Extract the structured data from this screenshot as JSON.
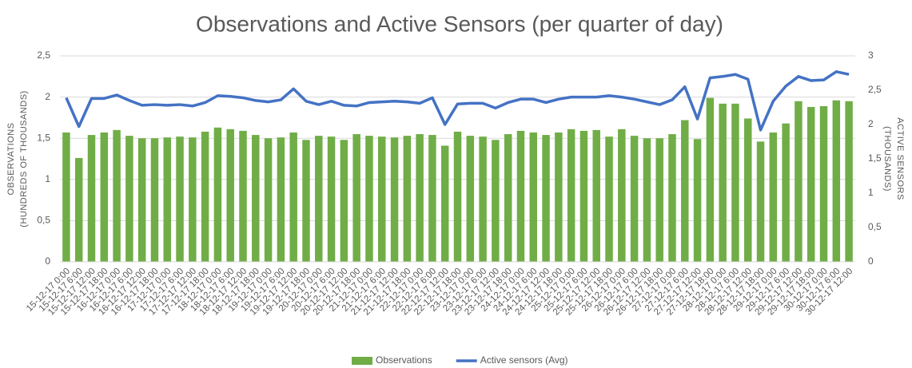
{
  "chart_data": {
    "type": "bar_line",
    "title": "Observations and Active Sensors (per quarter of day)",
    "y_label": [
      "OBSERVATIONS",
      "(HUNDREDS OF THOUSANDS)"
    ],
    "y2_label": [
      "ACTIVE SENSORS",
      "(THOUSANDS)"
    ],
    "categories": [
      "15-12-17 0:00",
      "15-12-17 6:00",
      "15-12-17 12:00",
      "15-12-17 18:00",
      "16-12-17 0:00",
      "16-12-17 6:00",
      "16-12-17 12:00",
      "16-12-17 18:00",
      "17-12-17 0:00",
      "17-12-17 6:00",
      "17-12-17 12:00",
      "17-12-17 18:00",
      "18-12-17 0:00",
      "18-12-17 6:00",
      "18-12-17 12:00",
      "18-12-17 18:00",
      "19-12-17 0:00",
      "19-12-17 6:00",
      "19-12-17 12:00",
      "19-12-17 18:00",
      "20-12-17 0:00",
      "20-12-17 6:00",
      "20-12-17 12:00",
      "20-12-17 18:00",
      "21-12-17 0:00",
      "21-12-17 6:00",
      "21-12-17 12:00",
      "21-12-17 18:00",
      "22-12-17 0:00",
      "22-12-17 6:00",
      "22-12-17 12:00",
      "22-12-17 18:00",
      "23-12-17 0:00",
      "23-12-17 6:00",
      "23-12-17 12:00",
      "23-12-17 18:00",
      "24-12-17 0:00",
      "24-12-17 6:00",
      "24-12-17 12:00",
      "24-12-17 18:00",
      "25-12-17 0:00",
      "25-12-17 6:00",
      "25-12-17 12:00",
      "25-12-17 18:00",
      "26-12-17 0:00",
      "26-12-17 6:00",
      "26-12-17 12:00",
      "26-12-17 18:00",
      "27-12-17 0:00",
      "27-12-17 6:00",
      "27-12-17 12:00",
      "27-12-17 18:00",
      "28-12-17 0:00",
      "28-12-17 6:00",
      "28-12-17 12:00",
      "28-12-17 18:00",
      "29-12-17 0:00",
      "29-12-17 6:00",
      "29-12-17 12:00",
      "29-12-17 18:00",
      "30-12-17 0:00",
      "30-12-17 6:00",
      "30-12-17 12:00"
    ],
    "series": [
      {
        "name": "Observations",
        "kind": "bar",
        "color": "#70ad47",
        "values": [
          1.57,
          1.26,
          1.54,
          1.57,
          1.6,
          1.53,
          1.5,
          1.5,
          1.51,
          1.52,
          1.51,
          1.58,
          1.63,
          1.61,
          1.59,
          1.54,
          1.5,
          1.51,
          1.57,
          1.48,
          1.53,
          1.52,
          1.48,
          1.55,
          1.53,
          1.52,
          1.51,
          1.53,
          1.55,
          1.54,
          1.41,
          1.58,
          1.53,
          1.52,
          1.48,
          1.55,
          1.59,
          1.57,
          1.54,
          1.57,
          1.61,
          1.59,
          1.6,
          1.52,
          1.61,
          1.53,
          1.5,
          1.5,
          1.55,
          1.72,
          1.49,
          1.99,
          1.92,
          1.92,
          1.74,
          1.46,
          1.57,
          1.68,
          1.95,
          1.88,
          1.89,
          1.96,
          1.95
        ]
      },
      {
        "name": "Active sensors (Avg)",
        "kind": "line",
        "axis": "y2",
        "color": "#4472c4",
        "values": [
          2.39,
          1.97,
          2.38,
          2.38,
          2.43,
          2.35,
          2.28,
          2.29,
          2.28,
          2.29,
          2.27,
          2.32,
          2.42,
          2.41,
          2.39,
          2.35,
          2.33,
          2.36,
          2.52,
          2.34,
          2.29,
          2.34,
          2.28,
          2.27,
          2.32,
          2.33,
          2.34,
          2.33,
          2.31,
          2.39,
          2.0,
          2.3,
          2.31,
          2.31,
          2.24,
          2.32,
          2.37,
          2.37,
          2.32,
          2.37,
          2.4,
          2.4,
          2.4,
          2.42,
          2.4,
          2.37,
          2.33,
          2.29,
          2.36,
          2.55,
          2.08,
          2.68,
          2.7,
          2.73,
          2.66,
          1.92,
          2.34,
          2.56,
          2.7,
          2.64,
          2.65,
          2.77,
          2.73
        ]
      }
    ],
    "ylim": [
      0,
      2.5
    ],
    "yticks": [
      0,
      {
        "value": 0.5,
        "label": "0,5"
      },
      1,
      {
        "value": 1.5,
        "label": "1,5"
      },
      2,
      {
        "value": 2.5,
        "label": "2,5"
      }
    ],
    "y2lim": [
      0,
      3
    ],
    "y2ticks": [
      0,
      {
        "value": 0.5,
        "label": "0,5"
      },
      1,
      {
        "value": 1.5,
        "label": "1,5"
      },
      2,
      {
        "value": 2.5,
        "label": "2,5"
      },
      3
    ],
    "grid": true,
    "legend": "bottom"
  }
}
